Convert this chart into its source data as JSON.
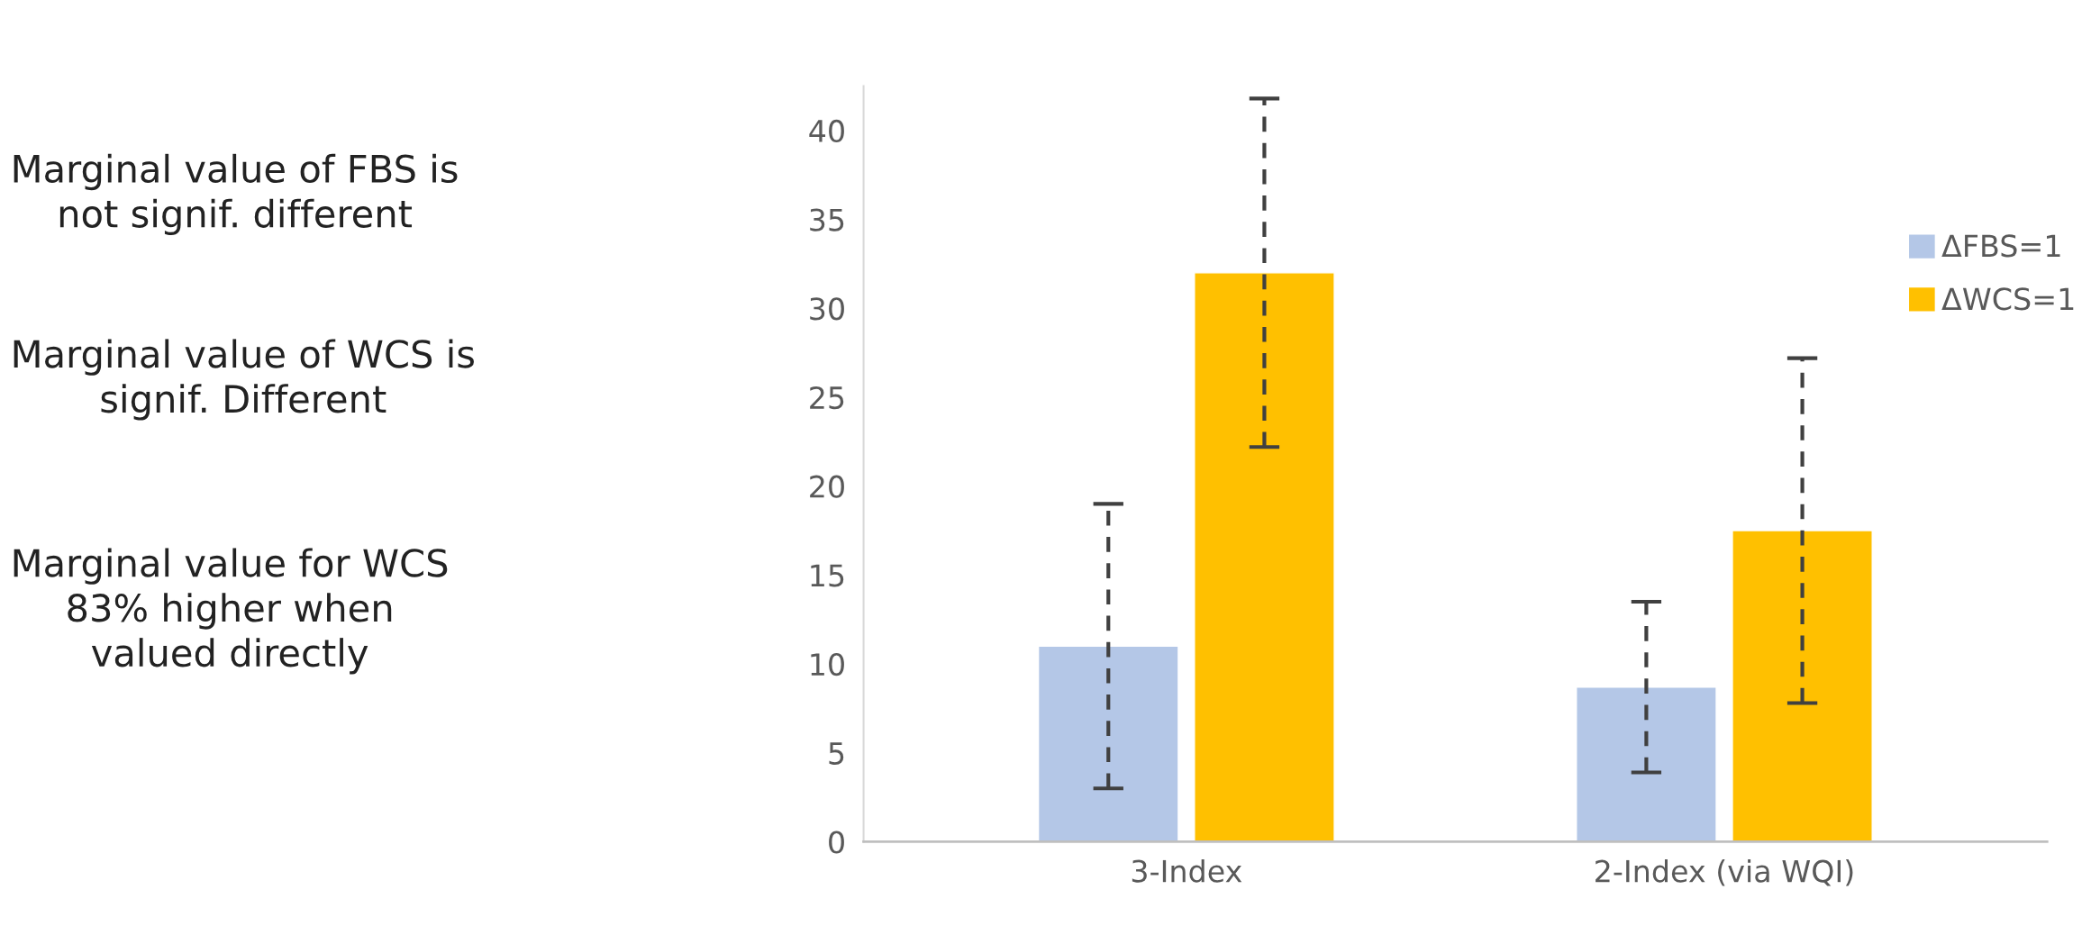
{
  "chart_data": {
    "type": "bar",
    "categories": [
      "3-Index",
      "2-Index (via WQI)"
    ],
    "series": [
      {
        "name": "ΔFBS=1",
        "color": "#b4c7e7",
        "values": [
          11,
          8.7
        ],
        "errors": [
          8,
          4.8
        ]
      },
      {
        "name": "ΔWCS=1",
        "color": "#ffc000",
        "values": [
          32,
          17.5
        ],
        "errors": [
          9.8,
          9.7
        ]
      }
    ],
    "ylim": [
      0,
      42.5
    ],
    "yticks": [
      0,
      5,
      10,
      15,
      20,
      25,
      30,
      35,
      40
    ],
    "grid": false,
    "legend": "right",
    "annotations": [
      "Marginal value of FBS is\nnot signif. different",
      "Marginal value of WCS is\nsignif. Different",
      "Marginal value for WCS\n83% higher when\nvalued directly"
    ]
  }
}
